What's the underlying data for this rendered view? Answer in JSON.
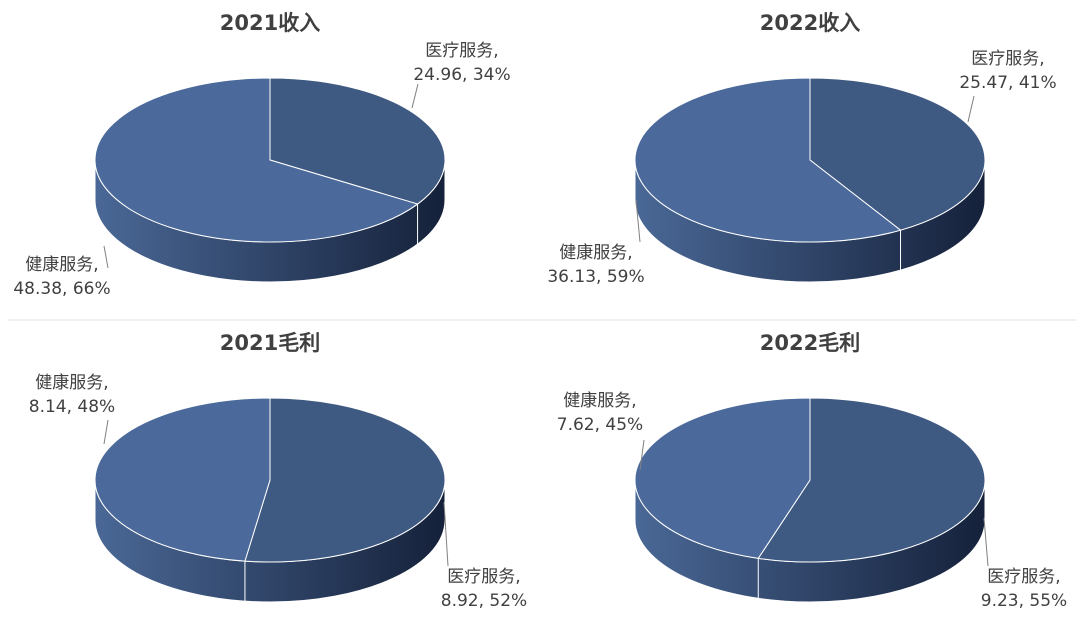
{
  "colors": {
    "slice_a_top": "#4B6A9B",
    "slice_b_top": "#3F5A82",
    "side_light": "#4A6896",
    "side_dark": "#15213A",
    "edge": "#FFFFFF",
    "label": "#404040",
    "title": "#404040",
    "divider": "#E0E0E0"
  },
  "chart_data": [
    {
      "type": "pie",
      "title": "2021收入",
      "slices": [
        {
          "name": "医疗服务",
          "value": 24.96,
          "percent": 34,
          "label_line1": "医疗服务,",
          "label_line2": "24.96, 34%"
        },
        {
          "name": "健康服务",
          "value": 48.38,
          "percent": 66,
          "label_line1": "健康服务,",
          "label_line2": "48.38, 66%"
        }
      ]
    },
    {
      "type": "pie",
      "title": "2022收入",
      "slices": [
        {
          "name": "医疗服务",
          "value": 25.47,
          "percent": 41,
          "label_line1": "医疗服务,",
          "label_line2": "25.47, 41%"
        },
        {
          "name": "健康服务",
          "value": 36.13,
          "percent": 59,
          "label_line1": "健康服务,",
          "label_line2": "36.13, 59%"
        }
      ]
    },
    {
      "type": "pie",
      "title": "2021毛利",
      "slices": [
        {
          "name": "医疗服务",
          "value": 8.92,
          "percent": 52,
          "label_line1": "医疗服务,",
          "label_line2": "8.92, 52%"
        },
        {
          "name": "健康服务",
          "value": 8.14,
          "percent": 48,
          "label_line1": "健康服务,",
          "label_line2": "8.14, 48%"
        }
      ]
    },
    {
      "type": "pie",
      "title": "2022毛利",
      "slices": [
        {
          "name": "医疗服务",
          "value": 9.23,
          "percent": 55,
          "label_line1": "医疗服务,",
          "label_line2": "9.23, 55%"
        },
        {
          "name": "健康服务",
          "value": 7.62,
          "percent": 45,
          "label_line1": "健康服务,",
          "label_line2": "7.62, 45%"
        }
      ]
    }
  ]
}
